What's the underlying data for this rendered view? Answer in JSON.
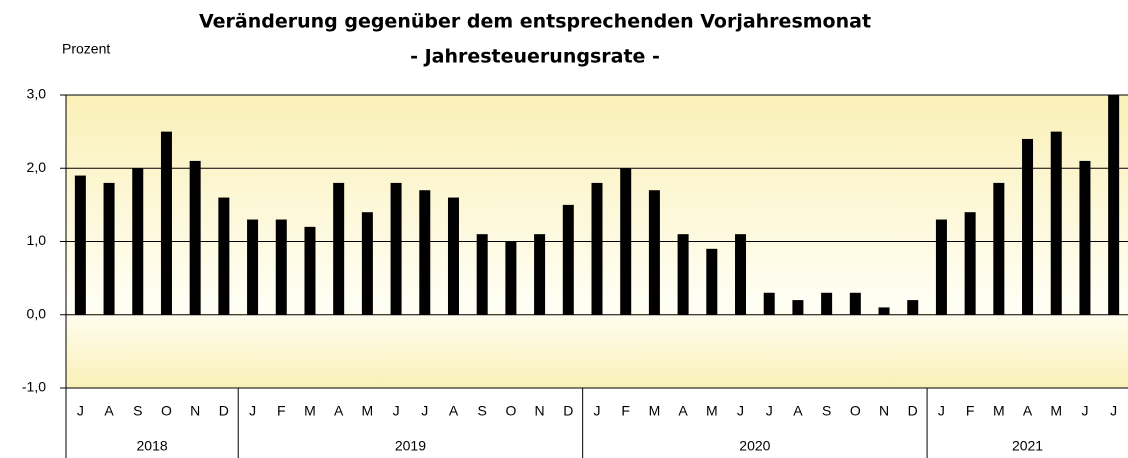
{
  "chart_data": {
    "type": "bar",
    "title": "Veränderung gegenüber dem entsprechenden Vorjahresmonat",
    "subtitle": "- Jahresteuerungsrate -",
    "y_label": "Prozent",
    "categories": [
      "J",
      "A",
      "S",
      "O",
      "N",
      "D",
      "J",
      "F",
      "M",
      "A",
      "M",
      "J",
      "J",
      "A",
      "S",
      "O",
      "N",
      "D",
      "J",
      "F",
      "M",
      "A",
      "M",
      "J",
      "J",
      "A",
      "S",
      "O",
      "N",
      "D",
      "J",
      "F",
      "M",
      "A",
      "M",
      "J",
      "J"
    ],
    "category_groups": [
      {
        "label": "2018",
        "span": 6
      },
      {
        "label": "2019",
        "span": 12
      },
      {
        "label": "2020",
        "span": 12
      },
      {
        "label": "2021",
        "span": 7
      }
    ],
    "values": [
      1.9,
      1.8,
      2.0,
      2.5,
      2.1,
      1.6,
      1.3,
      1.3,
      1.2,
      1.8,
      1.4,
      1.8,
      1.7,
      1.6,
      1.1,
      1.0,
      1.1,
      1.5,
      1.8,
      2.0,
      1.7,
      1.1,
      0.9,
      1.1,
      0.3,
      0.2,
      0.3,
      0.3,
      0.1,
      0.2,
      1.3,
      1.4,
      1.8,
      2.4,
      2.5,
      2.1,
      3.0
    ],
    "color": "#000000",
    "ylim": [
      -1,
      3
    ],
    "yticks": [
      {
        "value": -1,
        "label": "-1,0"
      },
      {
        "value": 0,
        "label": "0,0"
      },
      {
        "value": 1,
        "label": "1,0"
      },
      {
        "value": 2,
        "label": "2,0"
      },
      {
        "value": 3,
        "label": "3,0"
      }
    ],
    "grid": true
  }
}
